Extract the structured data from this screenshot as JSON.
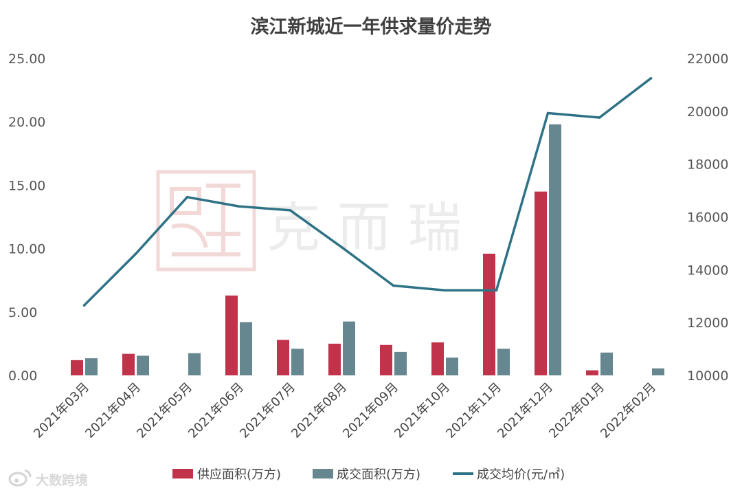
{
  "chart_data": {
    "type": "bar+line",
    "title": "滨江新城近一年供求量价走势",
    "categories": [
      "2021年03月",
      "2021年04月",
      "2021年05月",
      "2021年06月",
      "2021年07月",
      "2021年08月",
      "2021年09月",
      "2021年10月",
      "2021年11月",
      "2021年12月",
      "2022年01月",
      "2022年02月"
    ],
    "series": [
      {
        "name": "供应面积(万方)",
        "type": "bar",
        "axis": "left",
        "color": "#c0334a",
        "values": [
          1.2,
          1.7,
          null,
          6.3,
          2.8,
          2.5,
          2.4,
          2.6,
          9.6,
          14.5,
          0.4,
          null
        ]
      },
      {
        "name": "成交面积(万方)",
        "type": "bar",
        "axis": "left",
        "color": "#668690",
        "values": [
          1.35,
          1.55,
          1.75,
          4.2,
          2.1,
          4.25,
          1.85,
          1.4,
          2.1,
          19.8,
          1.8,
          0.55
        ]
      },
      {
        "name": "成交均价(元/㎡)",
        "type": "line",
        "axis": "right",
        "color": "#2e7286",
        "values": [
          12650,
          14600,
          16750,
          16400,
          16250,
          14850,
          13400,
          13220,
          13220,
          19930,
          19760,
          21250
        ]
      }
    ],
    "left_axis": {
      "ticks": [
        "0.00",
        "5.00",
        "10.00",
        "15.00",
        "20.00",
        "25.00"
      ],
      "range": [
        0,
        25
      ]
    },
    "right_axis": {
      "ticks": [
        "10000",
        "12000",
        "14000",
        "16000",
        "18000",
        "20000",
        "22000"
      ],
      "range": [
        10000,
        22000
      ]
    },
    "grid": false,
    "legend_position": "bottom"
  },
  "watermark": {
    "seal_text": "克而瑞",
    "text": "克 而 瑞"
  },
  "credit": {
    "text": "大数跨境",
    "logo": "weibo-logo"
  }
}
